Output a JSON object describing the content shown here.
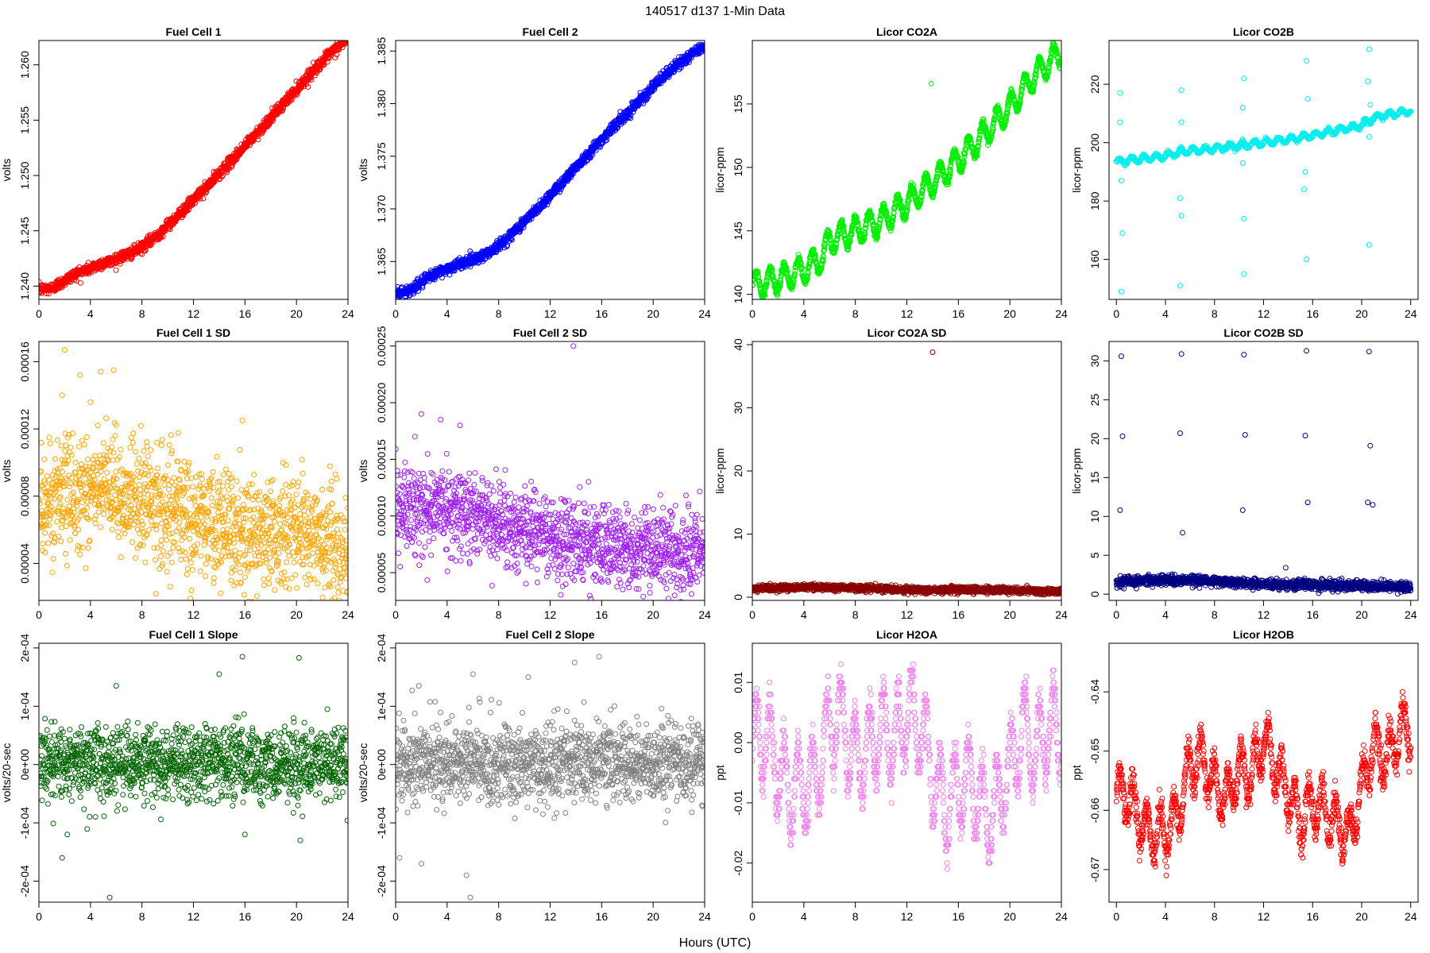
{
  "figure": {
    "title": "140517   d137   1-Min Data",
    "xlabel": "Hours (UTC)"
  },
  "chart_data": [
    {
      "type": "scatter",
      "title": "Fuel Cell 1",
      "ylabel": "volts",
      "color": "#ff0000",
      "xlim": [
        0,
        24
      ],
      "ylim": [
        1.2388,
        1.2622
      ],
      "xticks": [
        0,
        4,
        8,
        12,
        16,
        20,
        24
      ],
      "yticks": [
        1.24,
        1.245,
        1.25,
        1.255,
        1.26
      ],
      "ytick_labels": [
        "1.240",
        "1.245",
        "1.250",
        "1.255",
        "1.260"
      ],
      "series": [
        {
          "x": [
            0,
            1,
            2,
            3,
            4,
            5,
            5.5,
            6,
            7,
            8,
            9,
            10,
            11,
            12,
            13,
            14,
            15,
            16,
            17,
            18,
            19,
            20,
            21,
            22,
            23,
            24
          ],
          "y": [
            1.2397,
            1.2398,
            1.2405,
            1.2412,
            1.2416,
            1.2421,
            1.2422,
            1.2425,
            1.2429,
            1.2435,
            1.2444,
            1.2455,
            1.2466,
            1.2478,
            1.2489,
            1.2502,
            1.2514,
            1.2527,
            1.2539,
            1.2552,
            1.2565,
            1.2578,
            1.2591,
            1.2603,
            1.2614,
            1.2624
          ],
          "noise": 0.00025,
          "n": 1440
        }
      ]
    },
    {
      "type": "scatter",
      "title": "Fuel Cell 2",
      "ylabel": "volts",
      "color": "#0000ff",
      "xlim": [
        0,
        24
      ],
      "ylim": [
        1.3614,
        1.386
      ],
      "xticks": [
        0,
        4,
        8,
        12,
        16,
        20,
        24
      ],
      "yticks": [
        1.365,
        1.37,
        1.375,
        1.38,
        1.385
      ],
      "ytick_labels": [
        "1.365",
        "1.370",
        "1.375",
        "1.380",
        "1.385"
      ],
      "series": [
        {
          "x": [
            0,
            1,
            2,
            3,
            4,
            5,
            6,
            7,
            8,
            9,
            10,
            11,
            12,
            13,
            14,
            15,
            16,
            17,
            18,
            19,
            20,
            21,
            22,
            23,
            24
          ],
          "y": [
            1.362,
            1.3622,
            1.363,
            1.3638,
            1.3643,
            1.3648,
            1.3652,
            1.3657,
            1.3665,
            1.3676,
            1.3688,
            1.37,
            1.3713,
            1.3726,
            1.374,
            1.3753,
            1.3766,
            1.3779,
            1.3791,
            1.3804,
            1.3816,
            1.3828,
            1.3838,
            1.3847,
            1.3855
          ],
          "noise": 0.00025,
          "n": 1440
        }
      ]
    },
    {
      "type": "scatter",
      "title": "Licor CO2A",
      "ylabel": "licor-ppm",
      "color": "#00ee00",
      "xlim": [
        0,
        24
      ],
      "ylim": [
        139.6,
        160.0
      ],
      "xticks": [
        0,
        4,
        8,
        12,
        16,
        20,
        24
      ],
      "yticks": [
        140,
        145,
        150,
        155
      ],
      "ytick_labels": [
        "140",
        "145",
        "150",
        "155"
      ],
      "series": [
        {
          "x": [
            0,
            2,
            4,
            5.5,
            6,
            8,
            10,
            12,
            14,
            16,
            18,
            20,
            22,
            24
          ],
          "y": [
            140.7,
            141.2,
            141.9,
            143.0,
            144.3,
            145.0,
            145.8,
            147.2,
            148.8,
            150.6,
            152.6,
            154.8,
            157.3,
            159.2
          ],
          "wave": 1.0,
          "period": 1.1,
          "noise": 0.15,
          "n": 1440,
          "outliers": [
            [
              13.9,
              156.6
            ]
          ]
        }
      ]
    },
    {
      "type": "scatter",
      "title": "Licor CO2B",
      "ylabel": "licor-ppm",
      "color": "#00eeee",
      "xlim": [
        -0.6,
        24.6
      ],
      "ylim": [
        146.3,
        235.0
      ],
      "xticks": [
        0,
        4,
        8,
        12,
        16,
        20,
        24
      ],
      "yticks": [
        160,
        180,
        200,
        220
      ],
      "ytick_labels": [
        "160",
        "180",
        "200",
        "220"
      ],
      "series": [
        {
          "x": [
            0,
            4,
            5.5,
            8,
            12,
            14,
            16,
            20,
            21,
            24
          ],
          "y": [
            193.5,
            195.5,
            197.0,
            198.0,
            200.0,
            201.0,
            202.5,
            206.0,
            208.5,
            211.0
          ],
          "wave": 1.0,
          "period": 1.0,
          "noise": 0.3,
          "n": 720,
          "outliers": [
            [
              0.3,
              217
            ],
            [
              0.3,
              207
            ],
            [
              0.4,
              187
            ],
            [
              0.5,
              169
            ],
            [
              0.4,
              149
            ],
            [
              5.3,
              218
            ],
            [
              5.3,
              207
            ],
            [
              5.2,
              181
            ],
            [
              5.3,
              175
            ],
            [
              5.2,
              151
            ],
            [
              10.4,
              222
            ],
            [
              10.3,
              212
            ],
            [
              10.3,
              193
            ],
            [
              10.4,
              174
            ],
            [
              10.4,
              155
            ],
            [
              15.5,
              228
            ],
            [
              15.6,
              215
            ],
            [
              15.4,
              190
            ],
            [
              15.3,
              184
            ],
            [
              15.5,
              160
            ],
            [
              20.6,
              232
            ],
            [
              20.5,
              221
            ],
            [
              20.7,
              213
            ],
            [
              20.6,
              202
            ],
            [
              20.6,
              165
            ]
          ]
        }
      ]
    },
    {
      "type": "scatter",
      "title": "Fuel Cell 1 SD",
      "ylabel": "volts",
      "color": "#ffa500",
      "xlim": [
        0,
        24
      ],
      "ylim": [
        1.8e-05,
        0.000172
      ],
      "xticks": [
        0,
        4,
        8,
        12,
        16,
        20,
        24
      ],
      "yticks": [
        4e-05,
        8e-05,
        0.00012,
        0.00016
      ],
      "ytick_labels": [
        "0.00004",
        "0.00008",
        "0.00012",
        "0.00016"
      ],
      "series": [
        {
          "x": [
            0,
            4,
            8,
            12,
            16,
            20,
            24
          ],
          "y": [
            7.5e-05,
            8.5e-05,
            7.8e-05,
            6.6e-05,
            5.6e-05,
            6e-05,
            4.5e-05
          ],
          "noise": 1.7e-05,
          "n": 1440,
          "outliers": [
            [
              2,
              0.000167
            ],
            [
              3.2,
              0.000152
            ],
            [
              4.8,
              0.000154
            ],
            [
              5.8,
              0.000155
            ],
            [
              15.8,
              0.000125
            ],
            [
              4,
              0.000136
            ],
            [
              1.8,
              0.00014
            ]
          ]
        }
      ]
    },
    {
      "type": "scatter",
      "title": "Fuel Cell 2 SD",
      "ylabel": "volts",
      "color": "#a020f0",
      "xlim": [
        0,
        24
      ],
      "ylim": [
        2.55e-05,
        0.000254
      ],
      "xticks": [
        0,
        4,
        8,
        12,
        16,
        20,
        24
      ],
      "yticks": [
        5e-05,
        0.0001,
        0.00015,
        0.0002,
        0.00025
      ],
      "ytick_labels": [
        "0.00005",
        "0.00010",
        "0.00015",
        "0.00020",
        "0.00025"
      ],
      "series": [
        {
          "x": [
            0,
            4,
            8,
            12,
            16,
            20,
            24
          ],
          "y": [
            0.000105,
            0.000108,
            9.5e-05,
            8.2e-05,
            7.3e-05,
            7e-05,
            6.2e-05
          ],
          "noise": 1.8e-05,
          "n": 1440,
          "outliers": [
            [
              13.8,
              0.00025
            ],
            [
              2,
              0.00019
            ],
            [
              3.5,
              0.000185
            ],
            [
              5,
              0.00018
            ],
            [
              1.5,
              0.00017
            ]
          ]
        }
      ]
    },
    {
      "type": "scatter",
      "title": "Licor CO2A SD",
      "ylabel": "licor-ppm",
      "color": "#8b0000",
      "xlim": [
        0,
        24
      ],
      "ylim": [
        -0.5,
        40.5
      ],
      "xticks": [
        0,
        4,
        8,
        12,
        16,
        20,
        24
      ],
      "yticks": [
        0,
        10,
        20,
        30,
        40
      ],
      "ytick_labels": [
        "0",
        "10",
        "20",
        "30",
        "40"
      ],
      "series": [
        {
          "x": [
            0,
            4,
            8,
            12,
            16,
            20,
            24
          ],
          "y": [
            1.4,
            1.6,
            1.5,
            1.2,
            1.2,
            1.1,
            0.9
          ],
          "noise": 0.25,
          "n": 1440,
          "outliers": [
            [
              14,
              38.8
            ]
          ]
        }
      ]
    },
    {
      "type": "scatter",
      "title": "Licor CO2B SD",
      "ylabel": "licor-ppm",
      "color": "#000080",
      "xlim": [
        -0.6,
        24.6
      ],
      "ylim": [
        -0.8,
        32.5
      ],
      "xticks": [
        0,
        4,
        8,
        12,
        16,
        20,
        24
      ],
      "yticks": [
        0,
        5,
        10,
        15,
        20,
        25,
        30
      ],
      "ytick_labels": [
        "0",
        "5",
        "10",
        "15",
        "20",
        "25",
        "30"
      ],
      "series": [
        {
          "x": [
            0,
            4,
            8,
            12,
            16,
            20,
            24
          ],
          "y": [
            1.5,
            1.9,
            1.7,
            1.3,
            1.2,
            1.1,
            0.9
          ],
          "noise": 0.3,
          "n": 1440,
          "outliers": [
            [
              0.4,
              30.6
            ],
            [
              0.5,
              20.3
            ],
            [
              0.3,
              10.8
            ],
            [
              5.3,
              30.9
            ],
            [
              5.2,
              20.7
            ],
            [
              5.4,
              7.9
            ],
            [
              10.4,
              30.8
            ],
            [
              10.5,
              20.5
            ],
            [
              10.3,
              10.8
            ],
            [
              15.5,
              31.3
            ],
            [
              15.4,
              20.4
            ],
            [
              15.6,
              11.8
            ],
            [
              20.6,
              31.2
            ],
            [
              20.7,
              19.1
            ],
            [
              20.5,
              11.8
            ],
            [
              20.9,
              11.5
            ],
            [
              13.8,
              3.4
            ]
          ]
        }
      ]
    },
    {
      "type": "scatter",
      "title": "Fuel Cell 1 Slope",
      "ylabel": "volts/20-sec",
      "color": "#006400",
      "xlim": [
        0,
        24
      ],
      "ylim": [
        -0.000236,
        0.000208
      ],
      "xticks": [
        0,
        4,
        8,
        12,
        16,
        20,
        24
      ],
      "yticks": [
        -0.0002,
        -0.0001,
        0,
        0.0001,
        0.0002
      ],
      "ytick_labels": [
        "-2e-04",
        "-1e-04",
        "0e+00",
        "1e-04",
        "2e-04"
      ],
      "series": [
        {
          "x": [
            0,
            12,
            24
          ],
          "y": [
            2.5e-06,
            2.5e-06,
            2.5e-06
          ],
          "noise": 3.3e-05,
          "n": 1440,
          "outliers": [
            [
              5.5,
              -0.000228
            ],
            [
              15.8,
              0.000185
            ],
            [
              1.8,
              -0.00016
            ],
            [
              20.2,
              0.000183
            ],
            [
              14,
              0.000155
            ],
            [
              6,
              0.000135
            ],
            [
              2.2,
              -0.00012
            ],
            [
              16,
              -0.00012
            ],
            [
              20.3,
              -0.00013
            ]
          ]
        }
      ]
    },
    {
      "type": "scatter",
      "title": "Fuel Cell 2 Slope",
      "ylabel": "volts/20-sec",
      "color": "#808080",
      "xlim": [
        0,
        24
      ],
      "ylim": [
        -0.000236,
        0.000208
      ],
      "xticks": [
        0,
        4,
        8,
        12,
        16,
        20,
        24
      ],
      "yticks": [
        -0.0002,
        -0.0001,
        0,
        0.0001,
        0.0002
      ],
      "ytick_labels": [
        "-2e-04",
        "-1e-04",
        "0e+00",
        "1e-04",
        "2e-04"
      ],
      "series": [
        {
          "x": [
            0,
            12,
            24
          ],
          "y": [
            2.5e-06,
            2.5e-06,
            2.5e-06
          ],
          "noise": 3.3e-05,
          "n": 1440,
          "outliers": [
            [
              5.8,
              -0.000228
            ],
            [
              15.8,
              0.000185
            ],
            [
              5.5,
              -0.00019
            ],
            [
              2,
              -0.00017
            ],
            [
              0.3,
              -0.00016
            ],
            [
              13.9,
              0.000175
            ],
            [
              6,
              0.000155
            ],
            [
              10.3,
              0.00015
            ],
            [
              1.8,
              0.000135
            ]
          ]
        }
      ]
    },
    {
      "type": "scatter",
      "title": "Licor H2OA",
      "ylabel": "ppt",
      "color": "#ee82ee",
      "xlim": [
        0,
        24
      ],
      "ylim": [
        -0.0265,
        0.0165
      ],
      "xticks": [
        0,
        4,
        8,
        12,
        16,
        20,
        24
      ],
      "yticks": [
        -0.02,
        -0.01,
        0,
        0.01
      ],
      "ytick_labels": [
        "-0.02",
        "-0.01",
        "0.00",
        "0.01"
      ],
      "series": [
        {
          "x": [
            0,
            1,
            2,
            3,
            4,
            5,
            6,
            7,
            8,
            9,
            10,
            11,
            12,
            13,
            14,
            15,
            16,
            17,
            18,
            19,
            20,
            21,
            22,
            23,
            24
          ],
          "y": [
            0.0,
            0.001,
            -0.004,
            -0.008,
            -0.007,
            -0.006,
            0.004,
            0.003,
            -0.003,
            -0.001,
            0.002,
            0.0,
            0.005,
            0.003,
            -0.005,
            -0.011,
            -0.007,
            -0.006,
            -0.012,
            -0.01,
            -0.004,
            0.002,
            -0.002,
            0.003,
            0.002
          ],
          "wave": 0.007,
          "period": 1.1,
          "noise": 0.0015,
          "n": 1440,
          "quantize": 0.001
        }
      ]
    },
    {
      "type": "scatter",
      "title": "Licor H2OB",
      "ylabel": "ppt",
      "color": "#ff0000",
      "xlim": [
        -0.6,
        24.6
      ],
      "ylim": [
        -0.6755,
        -0.6318
      ],
      "xticks": [
        0,
        4,
        8,
        12,
        16,
        20,
        24
      ],
      "yticks": [
        -0.67,
        -0.66,
        -0.65,
        -0.64
      ],
      "ytick_labels": [
        "-0.67",
        "-0.66",
        "-0.65",
        "-0.64"
      ],
      "series": [
        {
          "x": [
            0,
            1,
            2,
            3,
            4,
            5,
            6,
            7,
            8,
            9,
            10,
            11,
            12,
            13,
            14,
            15,
            16,
            17,
            18,
            19,
            20,
            21,
            22,
            23,
            24
          ],
          "y": [
            -0.6575,
            -0.657,
            -0.662,
            -0.664,
            -0.664,
            -0.661,
            -0.652,
            -0.651,
            -0.656,
            -0.658,
            -0.653,
            -0.654,
            -0.648,
            -0.653,
            -0.657,
            -0.662,
            -0.659,
            -0.66,
            -0.662,
            -0.665,
            -0.656,
            -0.649,
            -0.652,
            -0.647,
            -0.646
          ],
          "wave": 0.004,
          "period": 1.1,
          "noise": 0.0012,
          "n": 1440,
          "quantize": 0.0005
        }
      ]
    }
  ]
}
